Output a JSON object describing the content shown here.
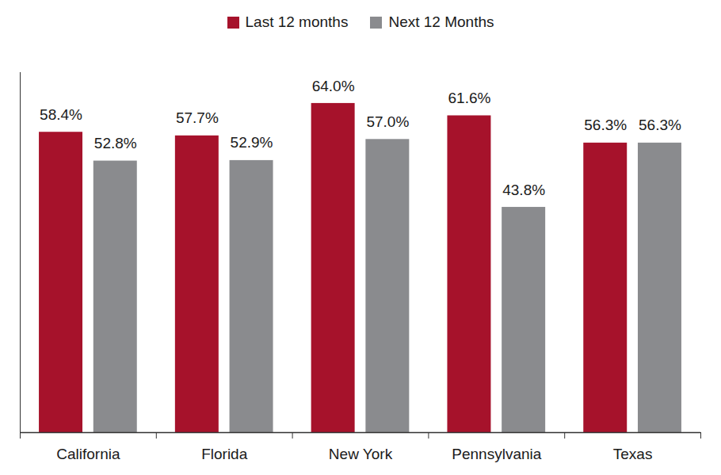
{
  "chart_data": {
    "type": "bar",
    "categories": [
      "California",
      "Florida",
      "New York",
      "Pennsylvania",
      "Texas"
    ],
    "series": [
      {
        "name": "Last 12 months",
        "color": "#a6122b",
        "values": [
          58.4,
          57.7,
          64.0,
          61.6,
          56.3
        ],
        "value_labels": [
          "58.4%",
          "57.7%",
          "64.0%",
          "61.6%",
          "56.3%"
        ]
      },
      {
        "name": "Next 12 Months",
        "color": "#8a8b8e",
        "values": [
          52.8,
          52.9,
          57.0,
          43.8,
          56.3
        ],
        "value_labels": [
          "52.8%",
          "52.9%",
          "57.0%",
          "43.8%",
          "56.3%"
        ]
      }
    ],
    "ylim": [
      0,
      70
    ],
    "data_labels": true,
    "tick_labels": "x",
    "legend": "top"
  }
}
